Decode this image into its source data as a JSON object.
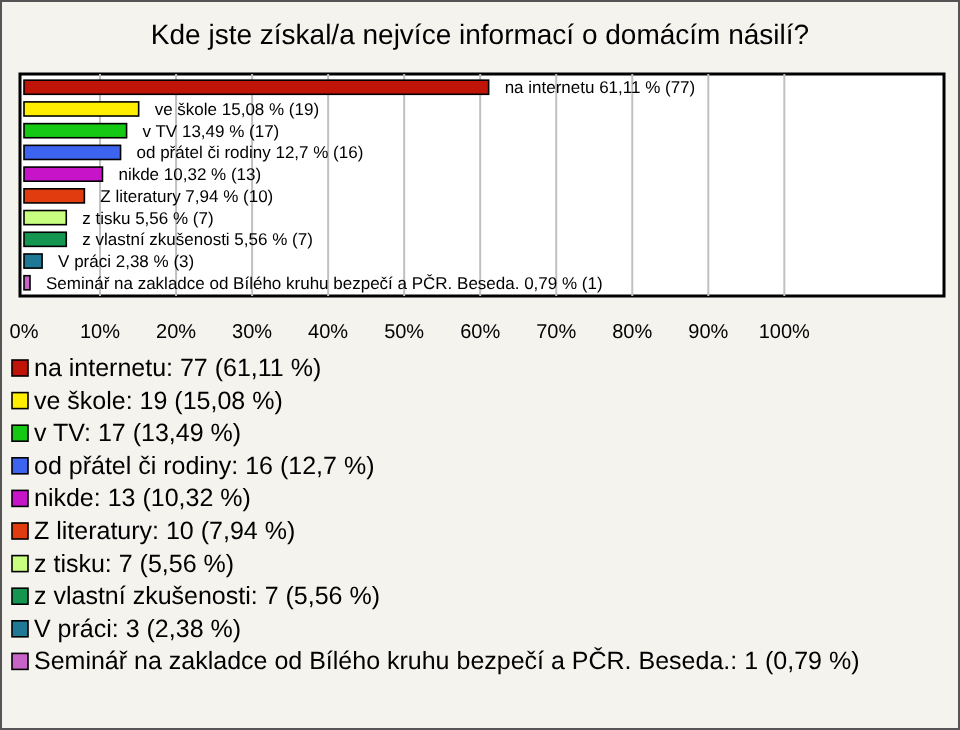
{
  "chart_data": {
    "type": "bar",
    "orientation": "horizontal",
    "title": "Kde jste získal/a nejvíce informací o domácím násilí?",
    "categories": [
      "na internetu",
      "ve škole",
      "v TV",
      "od přátel či rodiny",
      "nikde",
      "Z literatury",
      "z tisku",
      "z vlastní zkušenosti",
      "V práci",
      "Seminář na zakladce od Bílého kruhu bezpečí a PČR. Beseda."
    ],
    "values": [
      61.11,
      15.08,
      13.49,
      12.7,
      10.32,
      7.94,
      5.56,
      5.56,
      2.38,
      0.79
    ],
    "value_labels": [
      "61,11 % (77)",
      "15,08 % (19)",
      "13,49 % (17)",
      "12,7 % (16)",
      "10,32 % (13)",
      "7,94 % (10)",
      "5,56 % (7)",
      "5,56 % (7)",
      "2,38 % (3)",
      "0,79 % (1)"
    ],
    "colors": [
      "#c01408",
      "#ffee00",
      "#14c814",
      "#3c64f0",
      "#c814c8",
      "#e03c10",
      "#c8ff80",
      "#149650",
      "#1e7896",
      "#c864c8"
    ],
    "xlim": [
      0,
      121
    ],
    "xticks": [
      {
        "value": 0,
        "label": "0%"
      },
      {
        "value": 10,
        "label": "10%"
      },
      {
        "value": 20,
        "label": "20%"
      },
      {
        "value": 30,
        "label": "30%"
      },
      {
        "value": 40,
        "label": "40%"
      },
      {
        "value": 50,
        "label": "50%"
      },
      {
        "value": 60,
        "label": "60%"
      },
      {
        "value": 70,
        "label": "70%"
      },
      {
        "value": 80,
        "label": "80%"
      },
      {
        "value": 90,
        "label": "90%"
      },
      {
        "value": 100,
        "label": "100%"
      }
    ],
    "grid": "x",
    "tick_labels": "x",
    "annotations": [
      "na internetu: 77 (61,11 %)",
      "ve škole: 19 (15,08 %)",
      "v TV: 17 (13,49 %)",
      "od přátel či rodiny: 16 (12,7 %)",
      "nikde: 13 (10,32 %)",
      "Z literatury: 10 (7,94 %)",
      "z tisku: 7 (5,56 %)",
      "z vlastní zkušenosti: 7 (5,56 %)",
      "V práci: 3 (2,38 %)",
      "Seminář na zakladce od Bílého kruhu bezpečí a PČR. Beseda.: 1 (0,79 %)"
    ]
  }
}
